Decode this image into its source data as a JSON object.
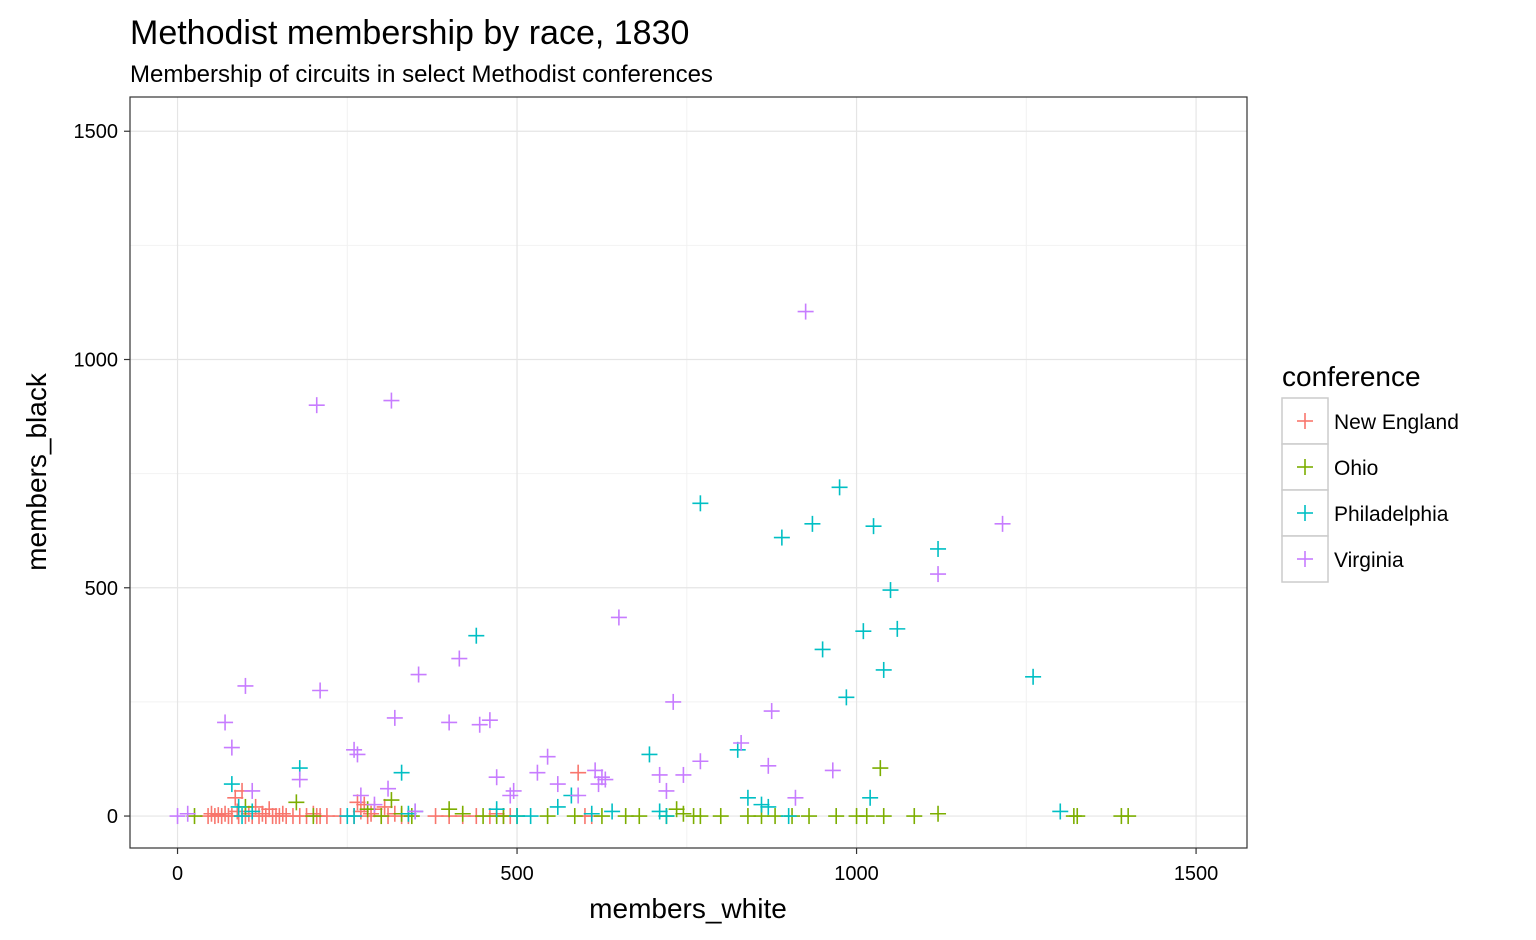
{
  "chart_data": {
    "type": "scatter",
    "title": "Methodist membership by race, 1830",
    "subtitle": "Membership of circuits in select Methodist conferences",
    "xlabel": "members_white",
    "ylabel": "members_black",
    "xlim": [
      -70,
      1575
    ],
    "ylim": [
      -70,
      1575
    ],
    "x_ticks": [
      0,
      500,
      1000,
      1500
    ],
    "y_ticks": [
      0,
      500,
      1000,
      1500
    ],
    "grid": true,
    "marker": "plus",
    "legend": {
      "title": "conference",
      "position": "right"
    },
    "series": [
      {
        "name": "New England",
        "color": "#F8766D",
        "points": [
          [
            45,
            0
          ],
          [
            50,
            5
          ],
          [
            55,
            0
          ],
          [
            60,
            2
          ],
          [
            65,
            0
          ],
          [
            70,
            5
          ],
          [
            75,
            0
          ],
          [
            80,
            0
          ],
          [
            85,
            40
          ],
          [
            88,
            10
          ],
          [
            90,
            0
          ],
          [
            95,
            55
          ],
          [
            100,
            0
          ],
          [
            105,
            5
          ],
          [
            110,
            0
          ],
          [
            115,
            20
          ],
          [
            120,
            0
          ],
          [
            125,
            5
          ],
          [
            130,
            0
          ],
          [
            135,
            15
          ],
          [
            140,
            0
          ],
          [
            145,
            0
          ],
          [
            150,
            0
          ],
          [
            155,
            5
          ],
          [
            160,
            0
          ],
          [
            170,
            0
          ],
          [
            180,
            0
          ],
          [
            190,
            0
          ],
          [
            200,
            5
          ],
          [
            205,
            0
          ],
          [
            210,
            0
          ],
          [
            220,
            0
          ],
          [
            240,
            0
          ],
          [
            260,
            0
          ],
          [
            265,
            30
          ],
          [
            270,
            10
          ],
          [
            275,
            25
          ],
          [
            280,
            0
          ],
          [
            285,
            5
          ],
          [
            290,
            15
          ],
          [
            300,
            0
          ],
          [
            305,
            20
          ],
          [
            310,
            0
          ],
          [
            320,
            5
          ],
          [
            330,
            0
          ],
          [
            340,
            0
          ],
          [
            380,
            0
          ],
          [
            400,
            0
          ],
          [
            420,
            0
          ],
          [
            440,
            0
          ],
          [
            460,
            0
          ],
          [
            470,
            5
          ],
          [
            480,
            0
          ],
          [
            490,
            0
          ],
          [
            590,
            95
          ],
          [
            600,
            0
          ],
          [
            610,
            0
          ]
        ]
      },
      {
        "name": "Ohio",
        "color": "#7CAE00",
        "points": [
          [
            25,
            0
          ],
          [
            100,
            20
          ],
          [
            175,
            30
          ],
          [
            200,
            0
          ],
          [
            280,
            15
          ],
          [
            300,
            0
          ],
          [
            315,
            35
          ],
          [
            330,
            5
          ],
          [
            345,
            0
          ],
          [
            400,
            15
          ],
          [
            420,
            5
          ],
          [
            450,
            0
          ],
          [
            470,
            0
          ],
          [
            480,
            0
          ],
          [
            500,
            0
          ],
          [
            545,
            0
          ],
          [
            585,
            0
          ],
          [
            625,
            0
          ],
          [
            660,
            0
          ],
          [
            680,
            0
          ],
          [
            720,
            0
          ],
          [
            735,
            15
          ],
          [
            745,
            5
          ],
          [
            760,
            0
          ],
          [
            770,
            0
          ],
          [
            800,
            0
          ],
          [
            840,
            0
          ],
          [
            860,
            0
          ],
          [
            880,
            0
          ],
          [
            905,
            0
          ],
          [
            930,
            0
          ],
          [
            970,
            0
          ],
          [
            1000,
            0
          ],
          [
            1015,
            0
          ],
          [
            1035,
            105
          ],
          [
            1040,
            0
          ],
          [
            1085,
            0
          ],
          [
            1120,
            5
          ],
          [
            1320,
            0
          ],
          [
            1325,
            0
          ],
          [
            1390,
            0
          ],
          [
            1400,
            0
          ]
        ]
      },
      {
        "name": "Philadelphia",
        "color": "#00BFC4",
        "points": [
          [
            80,
            70
          ],
          [
            90,
            20
          ],
          [
            95,
            0
          ],
          [
            110,
            10
          ],
          [
            180,
            105
          ],
          [
            250,
            0
          ],
          [
            260,
            0
          ],
          [
            330,
            95
          ],
          [
            340,
            5
          ],
          [
            350,
            10
          ],
          [
            440,
            395
          ],
          [
            470,
            15
          ],
          [
            500,
            0
          ],
          [
            520,
            0
          ],
          [
            560,
            20
          ],
          [
            580,
            45
          ],
          [
            610,
            5
          ],
          [
            640,
            10
          ],
          [
            695,
            135
          ],
          [
            710,
            10
          ],
          [
            720,
            0
          ],
          [
            770,
            685
          ],
          [
            825,
            145
          ],
          [
            840,
            40
          ],
          [
            860,
            25
          ],
          [
            870,
            20
          ],
          [
            890,
            610
          ],
          [
            900,
            0
          ],
          [
            935,
            640
          ],
          [
            950,
            365
          ],
          [
            975,
            720
          ],
          [
            985,
            260
          ],
          [
            1010,
            405
          ],
          [
            1020,
            40
          ],
          [
            1025,
            635
          ],
          [
            1040,
            320
          ],
          [
            1050,
            495
          ],
          [
            1060,
            410
          ],
          [
            1120,
            585
          ],
          [
            1260,
            305
          ],
          [
            1300,
            10
          ]
        ]
      },
      {
        "name": "Virginia",
        "color": "#C77CFF",
        "points": [
          [
            0,
            0
          ],
          [
            15,
            5
          ],
          [
            70,
            205
          ],
          [
            80,
            150
          ],
          [
            100,
            285
          ],
          [
            110,
            55
          ],
          [
            180,
            80
          ],
          [
            205,
            900
          ],
          [
            210,
            275
          ],
          [
            260,
            145
          ],
          [
            265,
            135
          ],
          [
            270,
            45
          ],
          [
            290,
            25
          ],
          [
            310,
            60
          ],
          [
            315,
            910
          ],
          [
            320,
            215
          ],
          [
            350,
            10
          ],
          [
            355,
            310
          ],
          [
            400,
            205
          ],
          [
            415,
            345
          ],
          [
            445,
            200
          ],
          [
            460,
            210
          ],
          [
            470,
            85
          ],
          [
            490,
            45
          ],
          [
            495,
            55
          ],
          [
            530,
            95
          ],
          [
            545,
            130
          ],
          [
            560,
            70
          ],
          [
            590,
            45
          ],
          [
            615,
            100
          ],
          [
            620,
            70
          ],
          [
            625,
            85
          ],
          [
            630,
            80
          ],
          [
            650,
            435
          ],
          [
            710,
            90
          ],
          [
            720,
            55
          ],
          [
            730,
            250
          ],
          [
            745,
            90
          ],
          [
            770,
            120
          ],
          [
            830,
            160
          ],
          [
            870,
            110
          ],
          [
            875,
            230
          ],
          [
            910,
            40
          ],
          [
            925,
            1105
          ],
          [
            965,
            100
          ],
          [
            1120,
            530
          ],
          [
            1215,
            640
          ]
        ]
      }
    ]
  }
}
